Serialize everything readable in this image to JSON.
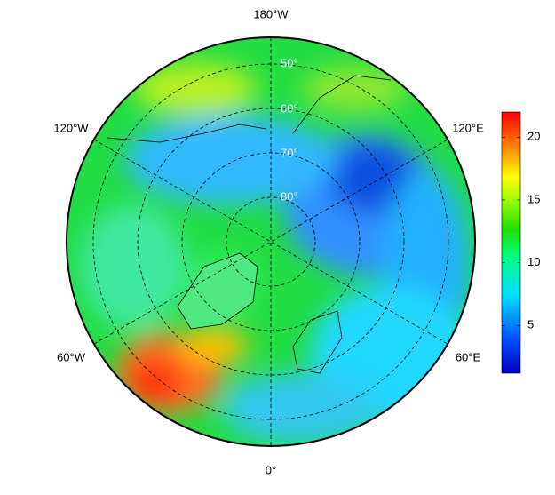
{
  "map": {
    "meridian_labels": [
      "180°W",
      "120°W",
      "120°E",
      "60°W",
      "60°E",
      "0°"
    ],
    "latitude_labels": [
      "50°",
      "60°",
      "70°",
      "80°"
    ],
    "colorbar": {
      "min": 1.2,
      "max": 22,
      "ticks": [
        5,
        10,
        15,
        20
      ]
    }
  }
}
